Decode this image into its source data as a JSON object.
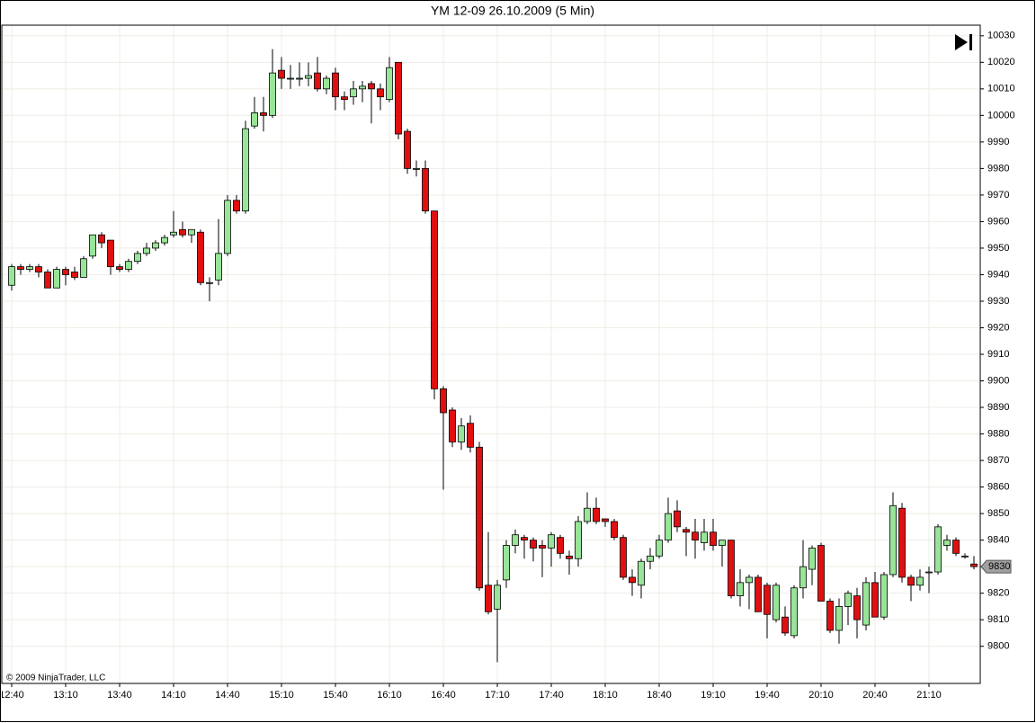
{
  "chart_data": {
    "type": "candlestick",
    "title": "YM 12-09  26.10.2009 (5 Min)",
    "copyright": "© 2009 NinjaTrader, LLC",
    "categories": [
      "12:40",
      null,
      null,
      null,
      null,
      null,
      "13:10",
      null,
      null,
      null,
      null,
      null,
      "13:40",
      null,
      null,
      null,
      null,
      null,
      "14:10",
      null,
      null,
      null,
      null,
      null,
      "14:40",
      null,
      null,
      null,
      null,
      null,
      "15:10",
      null,
      null,
      null,
      null,
      null,
      "15:40",
      null,
      null,
      null,
      null,
      null,
      "16:10",
      null,
      null,
      null,
      null,
      null,
      "16:40",
      null,
      null,
      null,
      null,
      null,
      "17:10",
      null,
      null,
      null,
      null,
      null,
      "17:40",
      null,
      null,
      null,
      null,
      null,
      "18:10",
      null,
      null,
      null,
      null,
      null,
      "18:40",
      null,
      null,
      null,
      null,
      null,
      "19:10",
      null,
      null,
      null,
      null,
      null,
      "19:40",
      null,
      null,
      null,
      null,
      null,
      "20:10",
      null,
      null,
      null,
      null,
      null,
      "20:40",
      null,
      null,
      null,
      null,
      null,
      "21:10",
      null,
      null,
      null,
      null,
      null
    ],
    "open": [
      9936,
      9943,
      9942,
      9943,
      9941,
      9935,
      9942,
      9941,
      9939,
      9947,
      9955,
      9953,
      9943,
      9942,
      9945,
      9948,
      9950,
      9952,
      9955,
      9957,
      9955,
      9956,
      9937,
      9938,
      9948,
      9968,
      9964,
      9996,
      10001,
      10000,
      10017,
      10014,
      10014,
      10014,
      10016,
      10010,
      10016,
      10007,
      10007,
      10010,
      10012,
      10010,
      10006,
      10020,
      9994,
      9980,
      9980,
      9964,
      9897,
      9889,
      9877,
      9884,
      9875,
      9823,
      9814,
      9825,
      9838,
      9841,
      9840,
      9838,
      9837,
      9841,
      9834,
      9833,
      9847,
      9852,
      9848,
      9847,
      9841,
      9826,
      9823,
      9832,
      9834,
      9840,
      9851,
      9844,
      9843,
      9839,
      9843,
      9838,
      9840,
      9819,
      9824,
      9826,
      9823,
      9810,
      9811,
      9804,
      9822,
      9829,
      9838,
      9817,
      9806,
      9815,
      9819,
      9808,
      9824,
      9811,
      9827,
      9852,
      9826,
      9823,
      9828,
      9828,
      9838,
      9840,
      9834,
      9831
    ],
    "high": [
      9944,
      9944,
      9944,
      9944,
      9942,
      9943,
      9943,
      9943,
      9947,
      9955,
      9956,
      9953,
      9944,
      9946,
      9949,
      9952,
      9953,
      9955,
      9964,
      9960,
      9957,
      9957,
      9939,
      9961,
      9970,
      9970,
      9998,
      10007,
      10007,
      10025,
      10022,
      10019,
      10020,
      10020,
      10022,
      10015,
      10018,
      10009,
      10013,
      10013,
      10013,
      10012,
      10022,
      10020,
      9995,
      9983,
      9983,
      9964,
      9898,
      9890,
      9886,
      9887,
      9877,
      9843,
      9825,
      9840,
      9844,
      9842,
      9841,
      9840,
      9843,
      9842,
      9836,
      9849,
      9858,
      9856,
      9848,
      9848,
      9842,
      9829,
      9833,
      9837,
      9842,
      9856,
      9855,
      9845,
      9848,
      9848,
      9848,
      9840,
      9840,
      9829,
      9827,
      9827,
      9824,
      9824,
      9815,
      9823,
      9840,
      9838,
      9839,
      9818,
      9818,
      9821,
      9822,
      9826,
      9828,
      9828,
      9858,
      9854,
      9827,
      9829,
      9830,
      9846,
      9842,
      9841,
      9835,
      9834
    ],
    "low": [
      9934,
      9940,
      9941,
      9939,
      9935,
      9935,
      9936,
      9938,
      9939,
      9946,
      9950,
      9940,
      9941,
      9941,
      9944,
      9947,
      9949,
      9951,
      9954,
      9954,
      9952,
      9936,
      9930,
      9936,
      9947,
      9963,
      9963,
      9995,
      9994,
      9999,
      10010,
      10010,
      10011,
      10011,
      10009,
      10008,
      10002,
      10002,
      10004,
      10005,
      9997,
      10002,
      10005,
      9991,
      9978,
      9977,
      9963,
      9893,
      9859,
      9875,
      9874,
      9873,
      9821,
      9812,
      9794,
      9822,
      9835,
      9833,
      9832,
      9826,
      9830,
      9833,
      9827,
      9830,
      9846,
      9846,
      9845,
      9840,
      9825,
      9819,
      9818,
      9829,
      9833,
      9839,
      9843,
      9834,
      9833,
      9836,
      9836,
      9830,
      9818,
      9815,
      9814,
      9813,
      9803,
      9809,
      9804,
      9803,
      9818,
      9823,
      9817,
      9805,
      9801,
      9808,
      9803,
      9806,
      9811,
      9810,
      9826,
      9824,
      9817,
      9821,
      9820,
      9827,
      9836,
      9834,
      9833,
      9829
    ],
    "close": [
      9943,
      9942,
      9943,
      9941,
      9935,
      9942,
      9940,
      9939,
      9946,
      9955,
      9952,
      9943,
      9942,
      9945,
      9948,
      9950,
      9952,
      9954,
      9956,
      9955,
      9957,
      9937,
      9937,
      9948,
      9968,
      9964,
      9995,
      10001,
      10000,
      10016,
      10014,
      10014,
      10014,
      10015,
      10010,
      10014,
      10007,
      10006,
      10010,
      10011,
      10010,
      10007,
      10018,
      9993,
      9980,
      9980,
      9964,
      9897,
      9888,
      9877,
      9883,
      9875,
      9822,
      9813,
      9823,
      9838,
      9842,
      9840,
      9837,
      9837,
      9842,
      9835,
      9833,
      9847,
      9852,
      9847,
      9847,
      9841,
      9826,
      9824,
      9832,
      9834,
      9840,
      9850,
      9845,
      9843,
      9840,
      9843,
      9838,
      9840,
      9819,
      9824,
      9826,
      9813,
      9812,
      9823,
      9805,
      9822,
      9830,
      9837,
      9817,
      9806,
      9815,
      9820,
      9810,
      9824,
      9811,
      9827,
      9853,
      9826,
      9823,
      9826,
      9828,
      9845,
      9840,
      9835,
      9834,
      9830
    ],
    "up_color": "#98e498",
    "down_color": "#e01010",
    "last_price": 9830,
    "ylim": [
      9786,
      10034
    ],
    "yticks": [
      9800,
      9810,
      9820,
      9830,
      9840,
      9850,
      9860,
      9870,
      9880,
      9890,
      9900,
      9910,
      9920,
      9930,
      9940,
      9950,
      9960,
      9970,
      9980,
      9990,
      10000,
      10010,
      10020,
      10030
    ],
    "grid": true
  }
}
